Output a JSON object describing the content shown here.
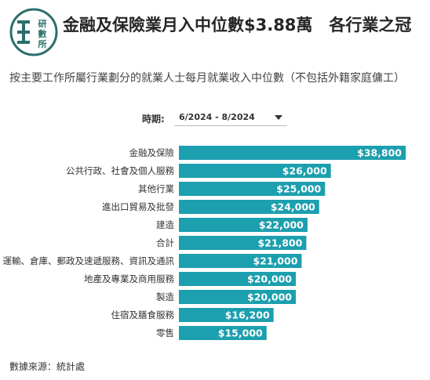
{
  "logo": {
    "name": "census-statistics-logo",
    "text": "研數所",
    "color": "#2b6f6b"
  },
  "header": {
    "title": "金融及保險業月入中位數$3.88萬　各行業之冠",
    "subtitle": "按主要工作所屬行業劃分的就業人士每月就業收入中位數（不包括外籍家庭傭工）"
  },
  "filter": {
    "label": "時期:",
    "selected": "6/2024 - 8/2024"
  },
  "colors": {
    "bar": "#1c9fae",
    "value_text": "#ffffff"
  },
  "chart_data": {
    "type": "bar",
    "orientation": "horizontal",
    "categories": [
      "金融及保險",
      "公共行政、社會及個人服務",
      "其他行業",
      "進出口貿易及批發",
      "建造",
      "合計",
      "運輸、倉庫、郵政及速遞服務、資訊及通訊",
      "地產及專業及商用服務",
      "製造",
      "住宿及膳食服務",
      "零售"
    ],
    "values": [
      38800,
      26000,
      25000,
      24000,
      22000,
      21800,
      21000,
      20000,
      20000,
      16200,
      15000
    ],
    "value_labels": [
      "$38,800",
      "$26,000",
      "$25,000",
      "$24,000",
      "$22,000",
      "$21,800",
      "$21,000",
      "$20,000",
      "$20,000",
      "$16,200",
      "$15,000"
    ],
    "xlim": [
      0,
      38800
    ],
    "grid": false,
    "legend": "none"
  },
  "footer": {
    "source": "數據來源：統計處"
  }
}
